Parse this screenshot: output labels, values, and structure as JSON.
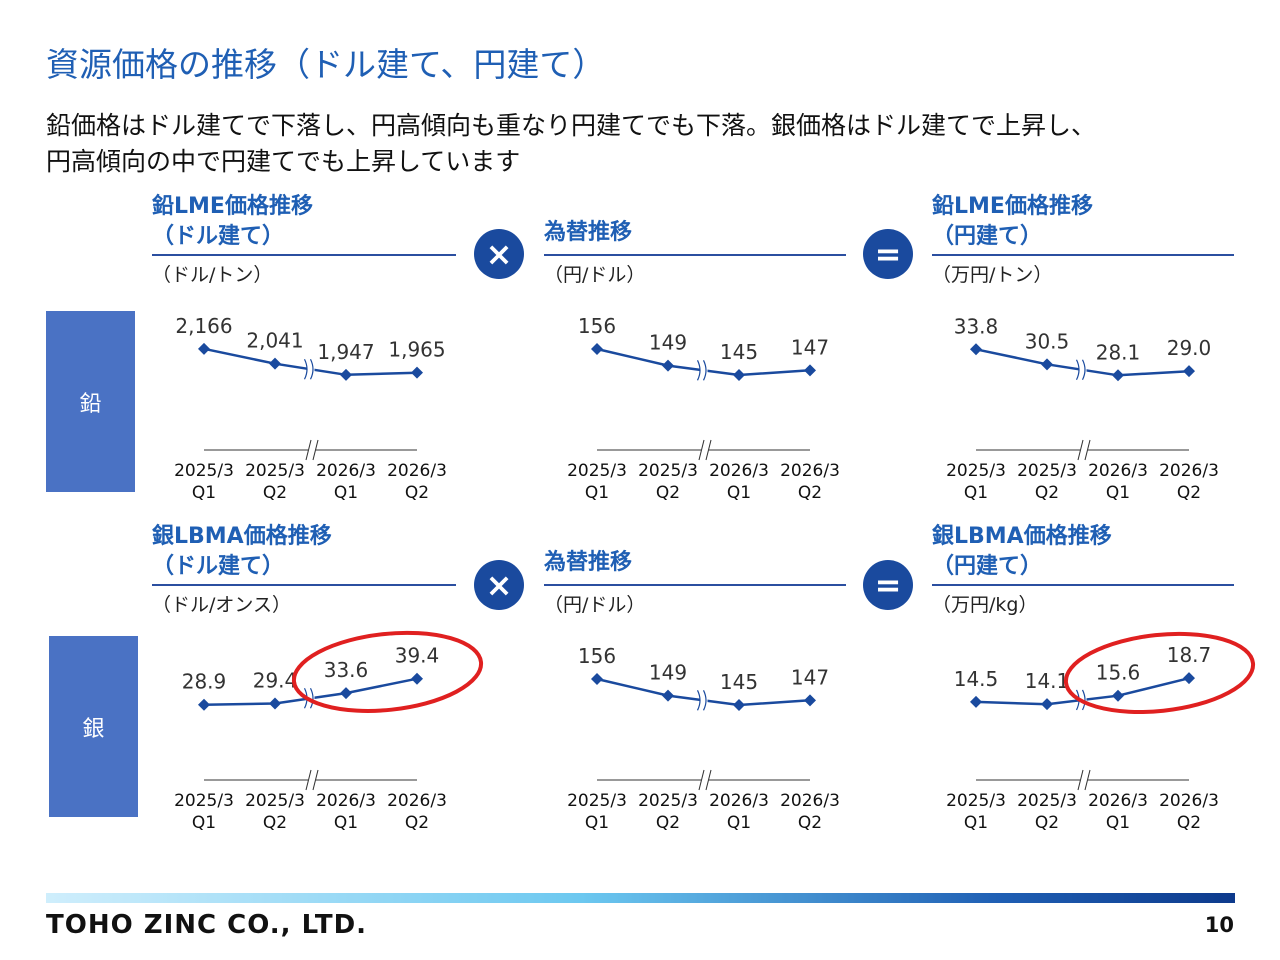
{
  "title": "資源価格の推移（ドル建て、円建て）",
  "lead_line1": "鉛価格はドル建てで下落し、円高傾向も重なり円建てでも下落。銀価格はドル建てで上昇し、",
  "lead_line2": "円高傾向の中で円建てでも上昇しています",
  "rows": [
    {
      "label": "鉛"
    },
    {
      "label": "銀"
    }
  ],
  "operators": {
    "multiply": "×",
    "equals": "="
  },
  "panels": {
    "lead_usd": {
      "title1": "鉛LME価格推移",
      "title2": "（ドル建て）",
      "unit": "（ドル/トン）"
    },
    "lead_fx": {
      "title1": "為替推移",
      "title2": "",
      "unit": "（円/ドル）"
    },
    "lead_jpy": {
      "title1": "鉛LME価格推移",
      "title2": "（円建て）",
      "unit": "（万円/トン）"
    },
    "silver_usd": {
      "title1": "銀LBMA価格推移",
      "title2": "（ドル建て）",
      "unit": "（ドル/オンス）"
    },
    "silver_fx": {
      "title1": "為替推移",
      "title2": "",
      "unit": "（円/ドル）"
    },
    "silver_jpy": {
      "title1": "銀LBMA価格推移",
      "title2": "（円建て）",
      "unit": "（万円/kg）"
    }
  },
  "chart_data": [
    {
      "id": "lead_usd",
      "type": "line",
      "categories": [
        "2025/3 Q1",
        "2025/3 Q2",
        "2026/3 Q1",
        "2026/3 Q2"
      ],
      "values": [
        2166,
        2041,
        1947,
        1965
      ],
      "labels": [
        "2,166",
        "2,041",
        "1,947",
        "1,965"
      ],
      "axis_break": true,
      "highlight": false
    },
    {
      "id": "lead_fx",
      "type": "line",
      "categories": [
        "2025/3 Q1",
        "2025/3 Q2",
        "2026/3 Q1",
        "2026/3 Q2"
      ],
      "values": [
        156,
        149,
        145,
        147
      ],
      "labels": [
        "156",
        "149",
        "145",
        "147"
      ],
      "axis_break": true,
      "highlight": false
    },
    {
      "id": "lead_jpy",
      "type": "line",
      "categories": [
        "2025/3 Q1",
        "2025/3 Q2",
        "2026/3 Q1",
        "2026/3 Q2"
      ],
      "values": [
        33.8,
        30.5,
        28.1,
        29.0
      ],
      "labels": [
        "33.8",
        "30.5",
        "28.1",
        "29.0"
      ],
      "axis_break": true,
      "highlight": false
    },
    {
      "id": "silver_usd",
      "type": "line",
      "categories": [
        "2025/3 Q1",
        "2025/3 Q2",
        "2026/3 Q1",
        "2026/3 Q2"
      ],
      "values": [
        28.9,
        29.4,
        33.6,
        39.4
      ],
      "labels": [
        "28.9",
        "29.4",
        "33.6",
        "39.4"
      ],
      "axis_break": true,
      "highlight": true
    },
    {
      "id": "silver_fx",
      "type": "line",
      "categories": [
        "2025/3 Q1",
        "2025/3 Q2",
        "2026/3 Q1",
        "2026/3 Q2"
      ],
      "values": [
        156,
        149,
        145,
        147
      ],
      "labels": [
        "156",
        "149",
        "145",
        "147"
      ],
      "axis_break": true,
      "highlight": false
    },
    {
      "id": "silver_jpy",
      "type": "line",
      "categories": [
        "2025/3 Q1",
        "2025/3 Q2",
        "2026/3 Q1",
        "2026/3 Q2"
      ],
      "values": [
        14.5,
        14.1,
        15.6,
        18.7
      ],
      "labels": [
        "14.5",
        "14.1",
        "15.6",
        "18.7"
      ],
      "axis_break": true,
      "highlight": true
    }
  ],
  "colors": {
    "accent": "#1f5fb4",
    "line": "#1a4a9e",
    "highlight": "#e02020",
    "label_box": "#4a72c4"
  },
  "footer": {
    "company": "TOHO ZINC CO., LTD.",
    "page": "10"
  }
}
